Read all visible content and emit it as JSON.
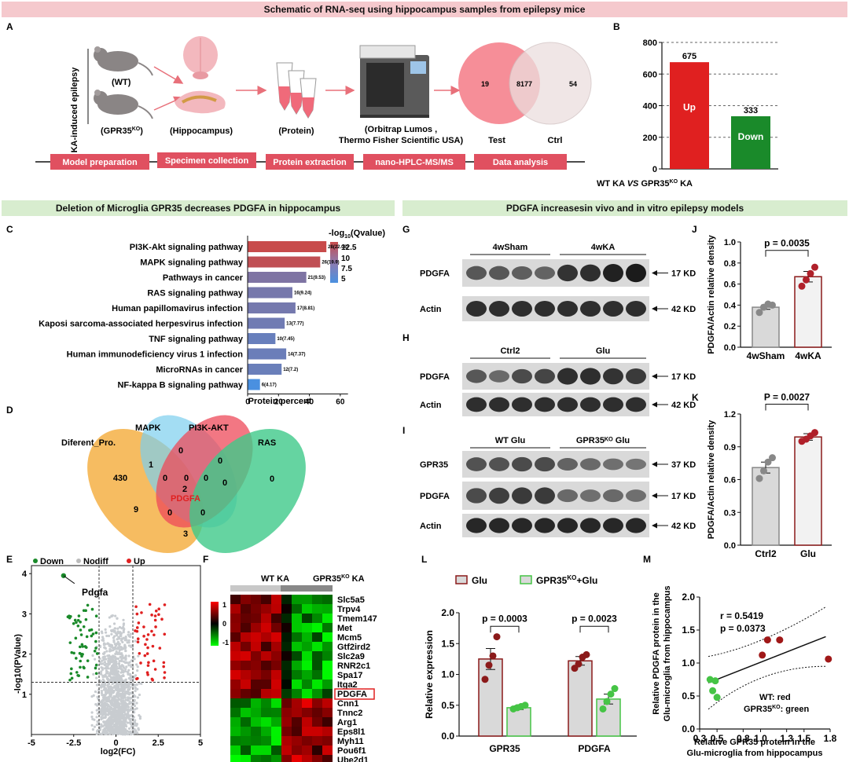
{
  "colors": {
    "pink_banner": "#f5c9cd",
    "green_banner": "#d8edcf",
    "red": "#e02020",
    "green": "#1a8a2a",
    "dark_red": "#8b1a1a",
    "light_green": "#45c445",
    "gray": "#cccccc"
  },
  "titles": {
    "top": "Schematic of RNA-seq using hippocampus samples from epilepsy mice",
    "left": "Deletion of  Microglia GPR35  decreases PDGFA in hippocampus",
    "right": "PDGFA increasesin vivo and in vitro epilepsy models"
  },
  "panel_letters": [
    "A",
    "B",
    "C",
    "D",
    "E",
    "F",
    "G",
    "H",
    "I",
    "J",
    "K",
    "L",
    "M"
  ],
  "panelA": {
    "side_label": "KA-induced epilepsy",
    "wt": "(WT)",
    "ko_pre": "(GPR35",
    "ko_sup": "KO",
    "ko_post": ")",
    "hippo": "(Hippocampus)",
    "protein": "(Protein)",
    "instrument_line1": "(Orbitrap Lumos ,",
    "instrument_line2": "Thermo Fisher Scientific USA)",
    "venn_left": "19",
    "venn_mid": "8177",
    "venn_right": "54",
    "venn_test": "Test",
    "venn_ctrl": "Ctrl",
    "steps": [
      "Model preparation",
      "Specimen collection",
      "Protein extraction",
      "nano-HPLC-MS/MS",
      "Data analysis"
    ]
  },
  "panelB": {
    "yticks": [
      "0",
      "200",
      "400",
      "600",
      "800"
    ],
    "xlabel_pre": "WT KA ",
    "xlabel_vs": "VS",
    "xlabel_mid": " GPR35",
    "xlabel_sup": "KO",
    "xlabel_post": " KA"
  },
  "panelC": {
    "xlabel": "Protein percent",
    "xticks": [
      "0",
      "20",
      "40",
      "60"
    ],
    "legend_title_pre": "-log",
    "legend_title_sub": "10",
    "legend_title_post": "(Qvalue)",
    "legend_ticks": [
      "12.5",
      "10",
      "7.5",
      "5"
    ]
  },
  "panelD": {
    "labels": [
      "Diferent_Pro.",
      "MAPK",
      "PI3K-AKT",
      "RAS"
    ],
    "highlight": "PDGFA",
    "numbers": [
      "430",
      "0",
      "1",
      "0",
      "0",
      "0",
      "9",
      "2",
      "0",
      "0",
      "0",
      "0",
      "3",
      "0"
    ]
  },
  "panelE": {
    "legend": [
      "Down",
      "Nodiff",
      "Up"
    ],
    "gene": "Pdgfa",
    "xlabel": "log2(FC)",
    "ylabel": "-log10(PValue)",
    "xticks": [
      "-5",
      "-2.5",
      "0",
      "2.5",
      "5"
    ],
    "yticks": [
      "1",
      "2",
      "3",
      "4"
    ]
  },
  "panelF": {
    "group1": "WT KA",
    "group2_pre": "GPR35",
    "group2_sup": "KO",
    "group2_post": " KA",
    "scale": [
      "1",
      "0",
      "-1"
    ],
    "genes": [
      "Slc5a5",
      "Trpv4",
      "Tmem147",
      "Met",
      "Mcm5",
      "Gtf2ird2",
      "Slc2a9",
      "RNR2c1",
      "Spa17",
      "Itga2",
      "PDGFA",
      "Cnn1",
      "Tnnc2",
      "Arg1",
      "Eps8l1",
      "Myh11",
      "Pou6f1",
      "Ube2d1"
    ]
  },
  "blots": {
    "G_groups": [
      "4wSham",
      "4wKA"
    ],
    "H_groups": [
      "Ctrl2",
      "Glu"
    ],
    "I_groups": [
      "WT Glu",
      "GPR35ᴷᴼ Glu"
    ],
    "pdgfa": "PDGFA",
    "actin": "Actin",
    "gpr35": "GPR35",
    "kd17": "17 KD",
    "kd42": "42 KD",
    "kd37": "37 KD"
  },
  "panelJ": {
    "ylabel": "PDGFA/Actin relative density",
    "p": "p = 0.0035",
    "yticks": [
      "0.0",
      "0.2",
      "0.4",
      "0.6",
      "0.8",
      "1.0"
    ],
    "cats": [
      "4wSham",
      "4wKA"
    ]
  },
  "panelK": {
    "ylabel": "PDGFA/Actin relative density",
    "p": "P = 0.0027",
    "yticks": [
      "0.0",
      "0.3",
      "0.6",
      "0.9",
      "1.2"
    ],
    "cats": [
      "Ctrl2",
      "Glu"
    ]
  },
  "panelL": {
    "ylabel": "Relative  expression",
    "legend_glu": "Glu",
    "legend_ko_pre": "GPR35",
    "legend_ko_sup": "KO",
    "legend_ko_post": "+Glu",
    "p1": "p = 0.0003",
    "p2": "p = 0.0023",
    "cats": [
      "GPR35",
      "PDGFA"
    ],
    "yticks": [
      "0.0",
      "0.5",
      "1.0",
      "1.5",
      "2.0"
    ]
  },
  "panelM": {
    "ylabel1": "Relative PDGFA protein in the",
    "ylabel2": "Glu-microglia from hippocampus",
    "xlabel1": "Relative GPR35 protein in the",
    "xlabel2": "Glu-microglia from hippocampus",
    "r": "r  =  0.5419",
    "p": "p = 0.0373",
    "legend_wt": "WT: red",
    "legend_ko_pre": "GPR35",
    "legend_ko_sup": "KO",
    "legend_ko_post": ": green",
    "xticks": [
      "0.3",
      "0.5",
      "0.8",
      "1.0",
      "1.3",
      "1.5",
      "1.8"
    ],
    "yticks": [
      "0.0",
      "0.5",
      "1.0",
      "1.5",
      "2.0"
    ]
  },
  "chart_data": [
    {
      "id": "B",
      "type": "bar",
      "categories": [
        "Up",
        "Down"
      ],
      "values": [
        675,
        333
      ],
      "ylim": [
        0,
        800
      ],
      "colors": [
        "#e02020",
        "#1a8a2a"
      ]
    },
    {
      "id": "C",
      "type": "bar",
      "orientation": "horizontal",
      "categories": [
        "PI3K-Akt signaling pathway",
        "MAPK signaling pathway",
        "Pathways in cancer",
        "RAS signaling pathway",
        "Human papillomavirus infection",
        "Kaposi sarcoma-associated herpesvirus infection",
        "TNF signaling pathway",
        "Human immunodeficiency virus 1 infection",
        "MicroRNAs in cancer",
        "NF-kappa B signaling pathway"
      ],
      "values": [
        51,
        47,
        38,
        29,
        31,
        24,
        18,
        25,
        22,
        8
      ],
      "data_labels": [
        "28(22.08)",
        "26(19.9)",
        "21(9.53)",
        "16(9.24)",
        "17(8.81)",
        "13(7.77)",
        "10(7.45)",
        "14(7.37)",
        "12(7.2)",
        "6(4.17)"
      ],
      "qvalues": [
        12.8,
        12.3,
        7.9,
        7.4,
        7.3,
        7.0,
        6.5,
        6.7,
        6.6,
        4.5
      ],
      "xlim": [
        0,
        70
      ]
    },
    {
      "id": "J",
      "type": "bar",
      "categories": [
        "4wSham",
        "4wKA"
      ],
      "values": [
        0.38,
        0.67
      ],
      "errors": [
        0.02,
        0.05
      ],
      "points": [
        [
          0.33,
          0.38,
          0.41,
          0.4
        ],
        [
          0.58,
          0.64,
          0.7,
          0.76
        ]
      ],
      "ylim": [
        0,
        1.0
      ]
    },
    {
      "id": "K",
      "type": "bar",
      "categories": [
        "Ctrl2",
        "Glu"
      ],
      "values": [
        0.71,
        0.99
      ],
      "errors": [
        0.05,
        0.03
      ],
      "points": [
        [
          0.61,
          0.68,
          0.76,
          0.8
        ],
        [
          0.95,
          0.97,
          1.0,
          1.03
        ]
      ],
      "ylim": [
        0,
        1.2
      ]
    },
    {
      "id": "L",
      "type": "bar",
      "categories": [
        "GPR35",
        "PDGFA"
      ],
      "series": [
        {
          "name": "Glu",
          "values": [
            1.25,
            1.22
          ],
          "errors": [
            0.17,
            0.07
          ],
          "points": [
            [
              0.92,
              1.15,
              1.3,
              1.61
            ],
            [
              1.1,
              1.17,
              1.28,
              1.32
            ]
          ]
        },
        {
          "name": "GPR35KO+Glu",
          "values": [
            0.46,
            0.6
          ],
          "errors": [
            0.03,
            0.08
          ],
          "points": [
            [
              0.44,
              0.46,
              0.48,
              0.5
            ],
            [
              0.44,
              0.56,
              0.68,
              0.77
            ]
          ]
        }
      ],
      "ylim": [
        0,
        2.0
      ]
    },
    {
      "id": "M",
      "type": "scatter",
      "x": [
        0.45,
        0.5,
        0.42,
        0.48,
        1.02,
        1.08,
        1.22,
        1.78
      ],
      "y": [
        0.58,
        0.48,
        0.75,
        0.73,
        1.12,
        1.35,
        1.35,
        1.06
      ],
      "groups": [
        "KO",
        "KO",
        "KO",
        "KO",
        "WT",
        "WT",
        "WT",
        "WT"
      ],
      "fit": [
        [
          0.4,
          0.7
        ],
        [
          1.75,
          1.4
        ]
      ],
      "xlim": [
        0.3,
        1.8
      ],
      "ylim": [
        0,
        2.0
      ]
    },
    {
      "id": "E",
      "type": "scatter",
      "xlim": [
        -5,
        5
      ],
      "ylim": [
        0,
        4.2
      ],
      "thresholds": {
        "x": [
          -1,
          1
        ],
        "y": 1.3
      },
      "highlight": {
        "gene": "Pdgfa",
        "x": -3.1,
        "y": 3.95
      }
    }
  ]
}
